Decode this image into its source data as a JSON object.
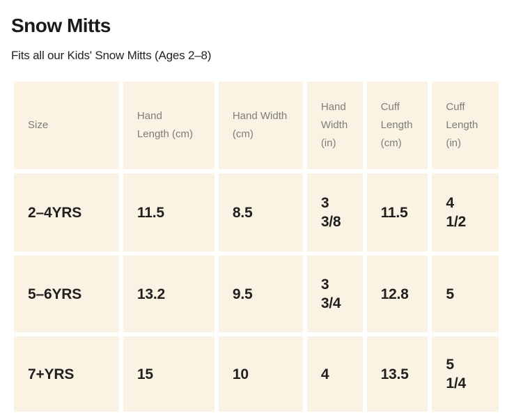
{
  "page": {
    "title": "Snow Mitts",
    "subtitle": "Fits all our Kids' Snow Mitts (Ages 2–8)"
  },
  "table": {
    "headers": [
      "Size",
      "Hand\nLength (cm)",
      "Hand Width\n(cm)",
      "Hand\nWidth\n(in)",
      "Cuff\nLength\n(cm)",
      "Cuff\nLength\n(in)"
    ],
    "rows": [
      [
        "2–4YRS",
        "11.5",
        "8.5",
        "3\n3/8",
        "11.5",
        "4\n1/2"
      ],
      [
        "5–6YRS",
        "13.2",
        "9.5",
        "3\n3/4",
        "12.8",
        "5"
      ],
      [
        "7+YRS",
        "15",
        "10",
        "4",
        "13.5",
        "5\n1/4"
      ]
    ]
  },
  "chart_data": {
    "type": "table",
    "title": "Snow Mitts",
    "subtitle": "Fits all our Kids' Snow Mitts (Ages 2–8)",
    "columns": [
      "Size",
      "Hand Length (cm)",
      "Hand Width (cm)",
      "Hand Width (in)",
      "Cuff Length (cm)",
      "Cuff Length (in)"
    ],
    "rows": [
      [
        "2–4YRS",
        "11.5",
        "8.5",
        "3 3/8",
        "11.5",
        "4 1/2"
      ],
      [
        "5–6YRS",
        "13.2",
        "9.5",
        "3 3/4",
        "12.8",
        "5"
      ],
      [
        "7+YRS",
        "15",
        "10",
        "4",
        "13.5",
        "5 1/4"
      ]
    ]
  },
  "colors": {
    "page_background": "#FFFFFF",
    "cell_background": "#FAF3E4",
    "header_text": "#7E7D78",
    "value_text": "#21201E",
    "title_text": "#1A1A1A"
  }
}
